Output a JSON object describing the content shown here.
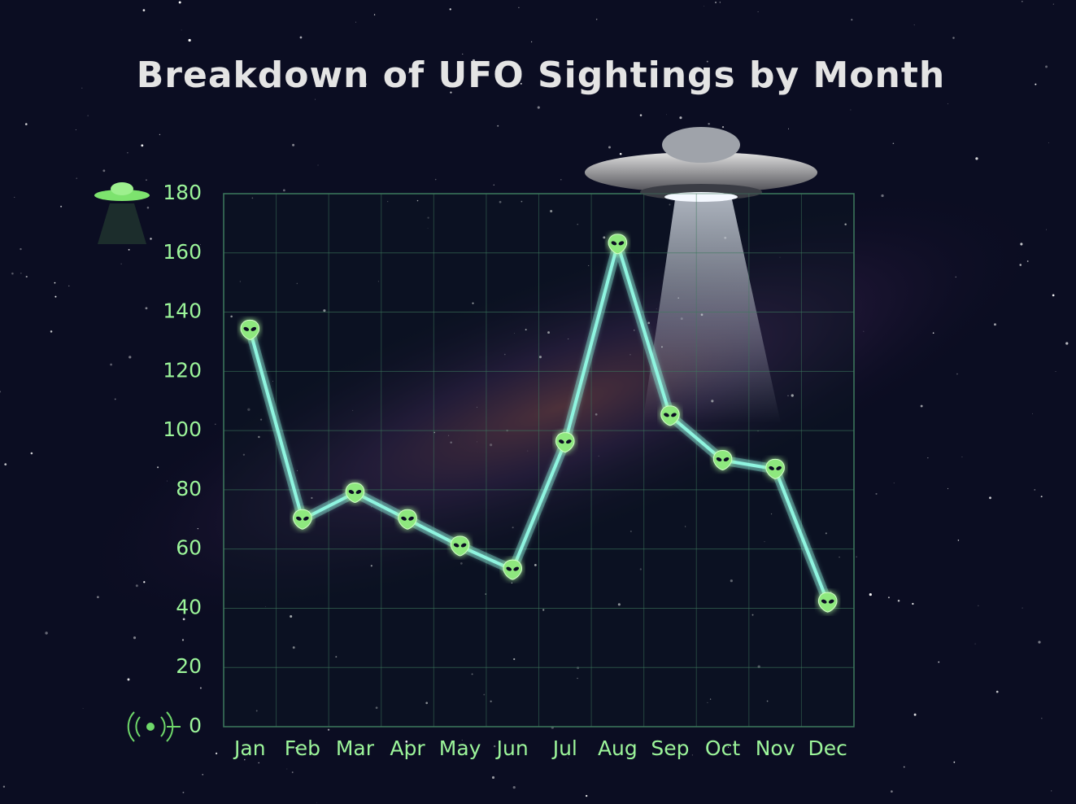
{
  "chart_data": {
    "type": "line",
    "title": "Breakdown of UFO Sightings by Month",
    "categories": [
      "Jan",
      "Feb",
      "Mar",
      "Apr",
      "May",
      "Jun",
      "Jul",
      "Aug",
      "Sep",
      "Oct",
      "Nov",
      "Dec"
    ],
    "values": [
      134,
      70,
      79,
      70,
      61,
      53,
      96,
      163,
      105,
      90,
      87,
      42
    ],
    "color": "#8ff5e0",
    "ylim": [
      0,
      180
    ],
    "yticks": [
      0,
      20,
      40,
      60,
      80,
      100,
      120,
      140,
      160,
      180
    ],
    "grid": true
  }
}
